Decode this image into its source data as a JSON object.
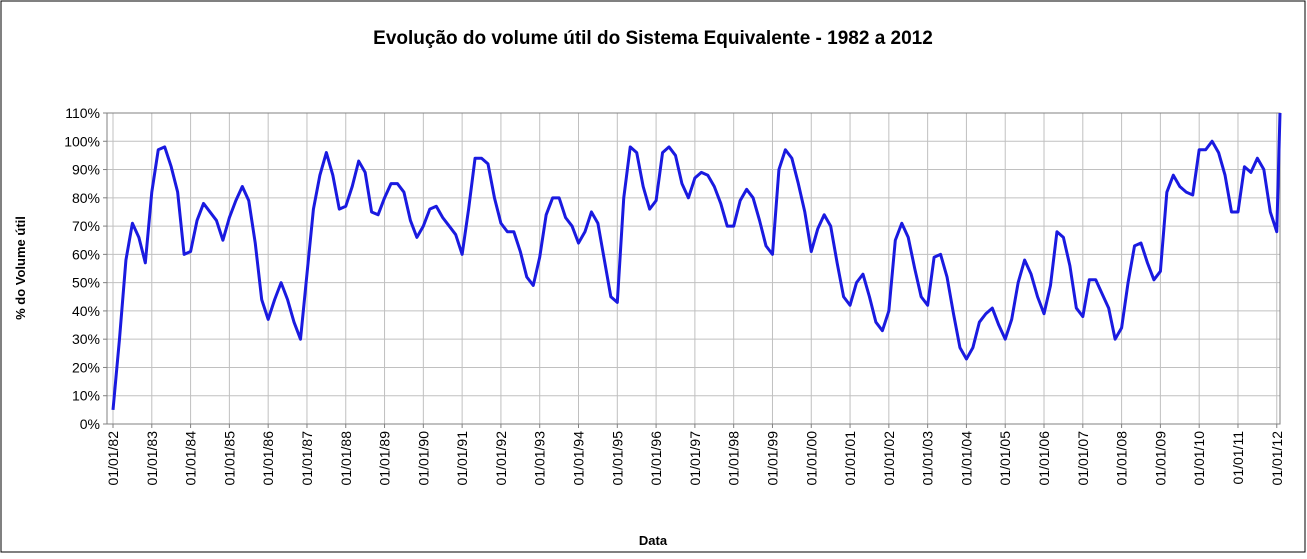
{
  "chart_data": {
    "type": "line",
    "title": "Evolução do volume útil do Sistema Equivalente - 1982 a 2012",
    "xlabel": "Data",
    "ylabel": "% do Volume útil",
    "color": "#1a1ae0",
    "grid": true,
    "ylim": [
      0,
      110
    ],
    "yticks": [
      {
        "value": 0,
        "label": "0%"
      },
      {
        "value": 10,
        "label": "10%"
      },
      {
        "value": 20,
        "label": "20%"
      },
      {
        "value": 30,
        "label": "30%"
      },
      {
        "value": 40,
        "label": "40%"
      },
      {
        "value": 50,
        "label": "50%"
      },
      {
        "value": 60,
        "label": "60%"
      },
      {
        "value": 70,
        "label": "70%"
      },
      {
        "value": 80,
        "label": "80%"
      },
      {
        "value": 90,
        "label": "90%"
      },
      {
        "value": 100,
        "label": "100%"
      },
      {
        "value": 110,
        "label": "110%"
      }
    ],
    "xlim": [
      "01/01/82",
      "01/02/12"
    ],
    "xticks": [
      "01/01/82",
      "01/01/83",
      "01/01/84",
      "01/01/85",
      "01/01/86",
      "01/01/87",
      "01/01/88",
      "01/01/89",
      "01/01/90",
      "01/01/91",
      "01/01/92",
      "01/01/93",
      "01/01/94",
      "01/01/95",
      "01/01/96",
      "01/01/97",
      "01/01/98",
      "01/01/99",
      "01/01/00",
      "01/01/01",
      "01/01/02",
      "01/01/03",
      "01/01/04",
      "01/01/05",
      "01/01/06",
      "01/01/07",
      "01/01/08",
      "01/01/09",
      "01/01/10",
      "01/01/11",
      "01/01/12"
    ],
    "x": [
      "01/01/82",
      "01/03/82",
      "01/05/82",
      "01/07/82",
      "01/09/82",
      "01/11/82",
      "01/01/83",
      "01/03/83",
      "01/05/83",
      "01/07/83",
      "01/09/83",
      "01/11/83",
      "01/01/84",
      "01/03/84",
      "01/05/84",
      "01/07/84",
      "01/09/84",
      "01/11/84",
      "01/01/85",
      "01/03/85",
      "01/05/85",
      "01/07/85",
      "01/09/85",
      "01/11/85",
      "01/01/86",
      "01/03/86",
      "01/05/86",
      "01/07/86",
      "01/09/86",
      "01/11/86",
      "01/01/87",
      "01/03/87",
      "01/05/87",
      "01/07/87",
      "01/09/87",
      "01/11/87",
      "01/01/88",
      "01/03/88",
      "01/05/88",
      "01/07/88",
      "01/09/88",
      "01/11/88",
      "01/01/89",
      "01/03/89",
      "01/05/89",
      "01/07/89",
      "01/09/89",
      "01/11/89",
      "01/01/90",
      "01/03/90",
      "01/05/90",
      "01/07/90",
      "01/09/90",
      "01/11/90",
      "01/01/91",
      "01/03/91",
      "01/05/91",
      "01/07/91",
      "01/09/91",
      "01/11/91",
      "01/01/92",
      "01/03/92",
      "01/05/92",
      "01/07/92",
      "01/09/92",
      "01/11/92",
      "01/01/93",
      "01/03/93",
      "01/05/93",
      "01/07/93",
      "01/09/93",
      "01/11/93",
      "01/01/94",
      "01/03/94",
      "01/05/94",
      "01/07/94",
      "01/09/94",
      "01/11/94",
      "01/01/95",
      "01/03/95",
      "01/05/95",
      "01/07/95",
      "01/09/95",
      "01/11/95",
      "01/01/96",
      "01/03/96",
      "01/05/96",
      "01/07/96",
      "01/09/96",
      "01/11/96",
      "01/01/97",
      "01/03/97",
      "01/05/97",
      "01/07/97",
      "01/09/97",
      "01/11/97",
      "01/01/98",
      "01/03/98",
      "01/05/98",
      "01/07/98",
      "01/09/98",
      "01/11/98",
      "01/01/99",
      "01/03/99",
      "01/05/99",
      "01/07/99",
      "01/09/99",
      "01/11/99",
      "01/01/00",
      "01/03/00",
      "01/05/00",
      "01/07/00",
      "01/09/00",
      "01/11/00",
      "01/01/01",
      "01/03/01",
      "01/05/01",
      "01/07/01",
      "01/09/01",
      "01/11/01",
      "01/01/02",
      "01/03/02",
      "01/05/02",
      "01/07/02",
      "01/09/02",
      "01/11/02",
      "01/01/03",
      "01/03/03",
      "01/05/03",
      "01/07/03",
      "01/09/03",
      "01/11/03",
      "01/01/04",
      "01/03/04",
      "01/05/04",
      "01/07/04",
      "01/09/04",
      "01/11/04",
      "01/01/05",
      "01/03/05",
      "01/05/05",
      "01/07/05",
      "01/09/05",
      "01/11/05",
      "01/01/06",
      "01/03/06",
      "01/05/06",
      "01/07/06",
      "01/09/06",
      "01/11/06",
      "01/01/07",
      "01/03/07",
      "01/05/07",
      "01/07/07",
      "01/09/07",
      "01/11/07",
      "01/01/08",
      "01/03/08",
      "01/05/08",
      "01/07/08",
      "01/09/08",
      "01/11/08",
      "01/01/09",
      "01/03/09",
      "01/05/09",
      "01/07/09",
      "01/09/09",
      "01/11/09",
      "01/01/10",
      "01/03/10",
      "01/05/10",
      "01/07/10",
      "01/09/10",
      "01/11/10",
      "01/01/11",
      "01/03/11",
      "01/05/11",
      "01/07/11",
      "01/09/11",
      "01/11/11",
      "01/01/12",
      "01/02/12"
    ],
    "values": [
      5,
      30,
      58,
      71,
      66,
      57,
      82,
      97,
      98,
      91,
      82,
      60,
      61,
      72,
      78,
      75,
      72,
      65,
      73,
      79,
      84,
      79,
      64,
      44,
      37,
      44,
      50,
      44,
      36,
      30,
      53,
      76,
      88,
      96,
      88,
      76,
      77,
      84,
      93,
      89,
      75,
      74,
      80,
      85,
      85,
      82,
      72,
      66,
      70,
      76,
      77,
      73,
      70,
      67,
      60,
      76,
      94,
      94,
      92,
      80,
      71,
      68,
      68,
      61,
      52,
      49,
      59,
      74,
      80,
      80,
      73,
      70,
      64,
      68,
      75,
      71,
      58,
      45,
      43,
      80,
      98,
      96,
      84,
      76,
      79,
      96,
      98,
      95,
      85,
      80,
      87,
      89,
      88,
      84,
      78,
      70,
      70,
      79,
      83,
      80,
      72,
      63,
      60,
      90,
      97,
      94,
      85,
      75,
      61,
      69,
      74,
      70,
      57,
      45,
      42,
      50,
      53,
      45,
      36,
      33,
      40,
      65,
      71,
      66,
      55,
      45,
      42,
      59,
      60,
      52,
      39,
      27,
      23,
      27,
      36,
      39,
      41,
      35,
      30,
      37,
      50,
      58,
      53,
      45,
      39,
      49,
      68,
      66,
      56,
      41,
      38,
      51,
      51,
      46,
      41,
      30,
      34,
      50,
      63,
      64,
      57,
      51,
      54,
      82,
      88,
      84,
      82,
      81,
      97,
      97,
      100,
      96,
      88,
      75,
      75,
      91,
      89,
      94,
      90,
      75,
      68,
      110
    ]
  }
}
